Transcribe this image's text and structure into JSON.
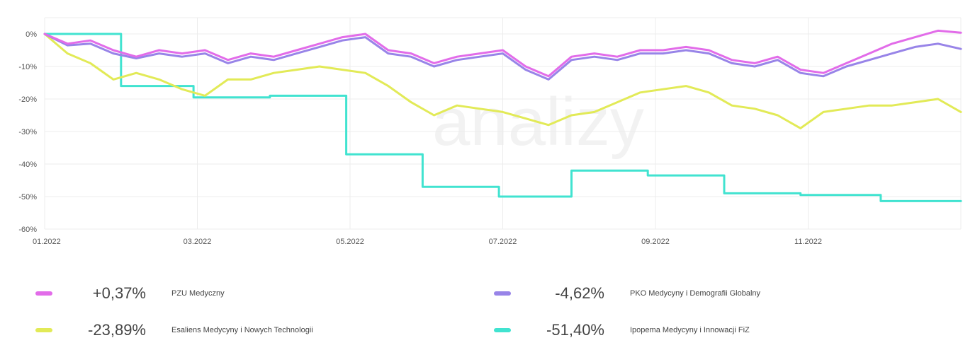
{
  "chart_data": {
    "type": "line",
    "watermark": "analizy",
    "grid": true,
    "legend_placement": "bottom",
    "x_ticks": [
      "01.2022",
      "03.2022",
      "05.2022",
      "07.2022",
      "09.2022",
      "11.2022"
    ],
    "y_ticks": [
      "0%",
      "-10%",
      "-20%",
      "-30%",
      "-40%",
      "-50%",
      "-60%"
    ],
    "ylim": [
      -60,
      5
    ],
    "xlim": [
      0,
      12
    ],
    "series": [
      {
        "name": "PZU Medyczny",
        "color": "#e26ce9",
        "total": "+0,37%",
        "x": [
          0,
          0.3,
          0.6,
          0.9,
          1.2,
          1.5,
          1.8,
          2.1,
          2.4,
          2.7,
          3.0,
          3.3,
          3.6,
          3.9,
          4.2,
          4.5,
          4.8,
          5.1,
          5.4,
          5.7,
          6.0,
          6.3,
          6.6,
          6.9,
          7.2,
          7.5,
          7.8,
          8.1,
          8.4,
          8.7,
          9.0,
          9.3,
          9.6,
          9.9,
          10.2,
          10.5,
          10.8,
          11.1,
          11.4,
          11.7,
          12.0
        ],
        "y": [
          0,
          -3,
          -2,
          -5,
          -7,
          -5,
          -6,
          -5,
          -8,
          -6,
          -7,
          -5,
          -3,
          -1,
          0,
          -5,
          -6,
          -9,
          -7,
          -6,
          -5,
          -10,
          -13,
          -7,
          -6,
          -7,
          -5,
          -5,
          -4,
          -5,
          -8,
          -9,
          -7,
          -11,
          -12,
          -9,
          -6,
          -3,
          -1,
          1,
          0.4
        ]
      },
      {
        "name": "PKO Medycyny i Demografii Globalny",
        "color": "#9884e8",
        "total": "-4,62%",
        "x": [
          0,
          0.3,
          0.6,
          0.9,
          1.2,
          1.5,
          1.8,
          2.1,
          2.4,
          2.7,
          3.0,
          3.3,
          3.6,
          3.9,
          4.2,
          4.5,
          4.8,
          5.1,
          5.4,
          5.7,
          6.0,
          6.3,
          6.6,
          6.9,
          7.2,
          7.5,
          7.8,
          8.1,
          8.4,
          8.7,
          9.0,
          9.3,
          9.6,
          9.9,
          10.2,
          10.5,
          10.8,
          11.1,
          11.4,
          11.7,
          12.0
        ],
        "y": [
          0,
          -3.5,
          -3,
          -6,
          -7.5,
          -6,
          -7,
          -6,
          -9,
          -7,
          -8,
          -6,
          -4,
          -2,
          -1,
          -6,
          -7,
          -10,
          -8,
          -7,
          -6,
          -11,
          -14,
          -8,
          -7,
          -8,
          -6,
          -6,
          -5,
          -6,
          -9,
          -10,
          -8,
          -12,
          -13,
          -10,
          -8,
          -6,
          -4,
          -3,
          -4.6
        ]
      },
      {
        "name": "Esaliens Medycyny i Nowych Technologii",
        "color": "#e2ea57",
        "total": "-23,89%",
        "x": [
          0,
          0.3,
          0.6,
          0.9,
          1.2,
          1.5,
          1.8,
          2.1,
          2.4,
          2.7,
          3.0,
          3.3,
          3.6,
          3.9,
          4.2,
          4.5,
          4.8,
          5.1,
          5.4,
          5.7,
          6.0,
          6.3,
          6.6,
          6.9,
          7.2,
          7.5,
          7.8,
          8.1,
          8.4,
          8.7,
          9.0,
          9.3,
          9.6,
          9.9,
          10.2,
          10.5,
          10.8,
          11.1,
          11.4,
          11.7,
          12.0
        ],
        "y": [
          0,
          -6,
          -9,
          -14,
          -12,
          -14,
          -17,
          -19,
          -14,
          -14,
          -12,
          -11,
          -10,
          -11,
          -12,
          -16,
          -21,
          -25,
          -22,
          -23,
          -24,
          -26,
          -28,
          -25,
          -24,
          -21,
          -18,
          -17,
          -16,
          -18,
          -22,
          -23,
          -25,
          -29,
          -24,
          -23,
          -22,
          -22,
          -21,
          -20,
          -24
        ]
      },
      {
        "name": "Ipopema Medycyny i Innowacji FiZ",
        "color": "#41e3d0",
        "total": "-51,40%",
        "x": [
          0,
          1.0,
          1.0,
          1.95,
          1.95,
          2.95,
          2.95,
          3.95,
          3.95,
          4.95,
          4.95,
          5.95,
          5.95,
          6.9,
          6.9,
          7.9,
          7.9,
          8.9,
          8.9,
          9.9,
          9.9,
          10.95,
          10.95,
          12.0
        ],
        "y": [
          0,
          0,
          -16,
          -16,
          -19.5,
          -19.5,
          -19,
          -19,
          -37,
          -37,
          -47,
          -47,
          -50,
          -50,
          -42,
          -42,
          -43.5,
          -43.5,
          -49,
          -49,
          -49.5,
          -49.5,
          -51.4,
          -51.4
        ]
      }
    ]
  }
}
